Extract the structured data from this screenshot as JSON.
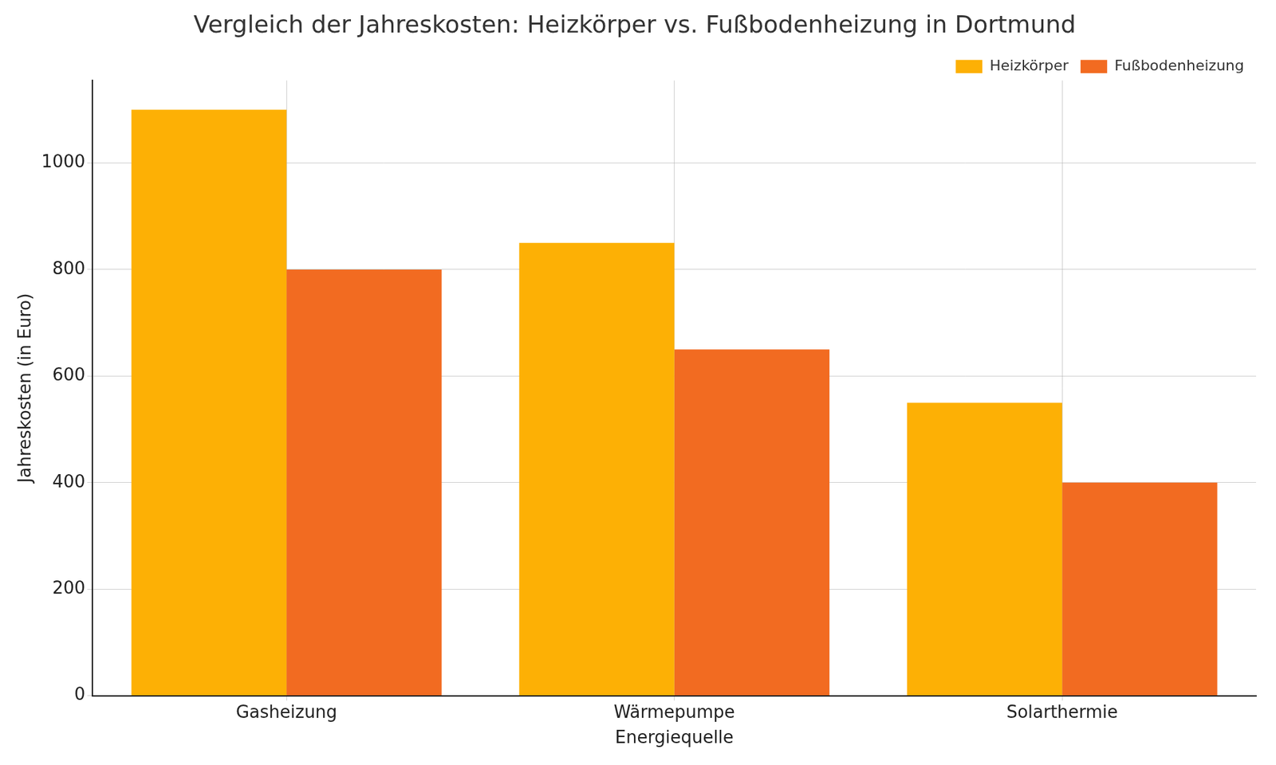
{
  "chart_data": {
    "type": "bar",
    "title": "Vergleich der Jahreskosten: Heizkörper vs. Fußbodenheizung in Dortmund",
    "x_label": "Energiequelle",
    "y_label": "Jahreskosten (in Euro)",
    "categories": [
      "Gasheizung",
      "Wärmepumpe",
      "Solarthermie"
    ],
    "series": [
      {
        "name": "Heizkörper",
        "color": "#fdb005",
        "values": [
          1100,
          850,
          550
        ]
      },
      {
        "name": "Fußbodenheizung",
        "color": "#f26b21",
        "values": [
          800,
          650,
          400
        ]
      }
    ],
    "ylim": [
      0,
      1155
    ],
    "yticks": [
      0,
      200,
      400,
      600,
      800,
      1000
    ],
    "grid": true,
    "legend": "upper right"
  }
}
